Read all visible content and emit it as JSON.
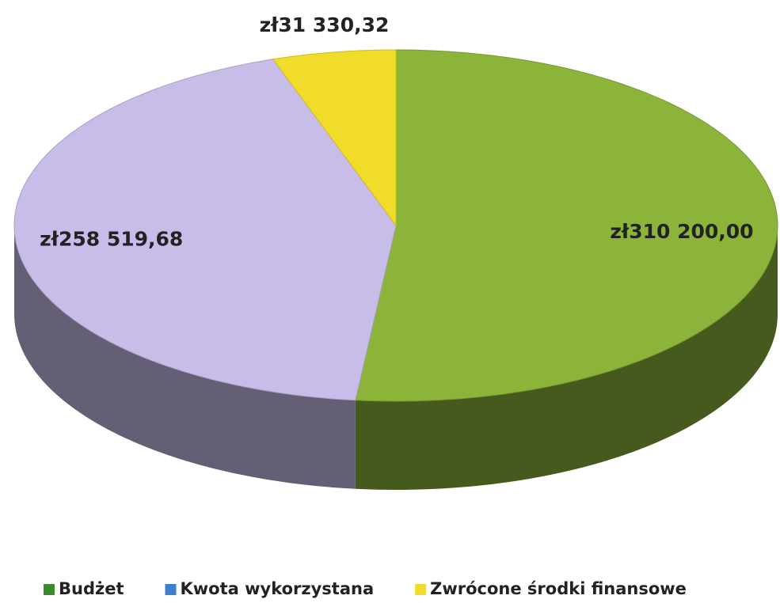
{
  "chart_data": {
    "type": "pie",
    "categories": [
      "Budżet",
      "Kwota wykorzystana",
      "Zwrócone środki finansowe"
    ],
    "values": [
      310200,
      258519.68,
      31330.32
    ],
    "value_labels": [
      "zł310 200,00",
      "zł258 519,68",
      "zł31 330,32"
    ],
    "colors": [
      "#8db43a",
      "#c8bde8",
      "#f2dc2a"
    ],
    "legend_colors": [
      "#3d8a2c",
      "#3b7fd4",
      "#f2dc2a"
    ],
    "legend": "bottom"
  }
}
